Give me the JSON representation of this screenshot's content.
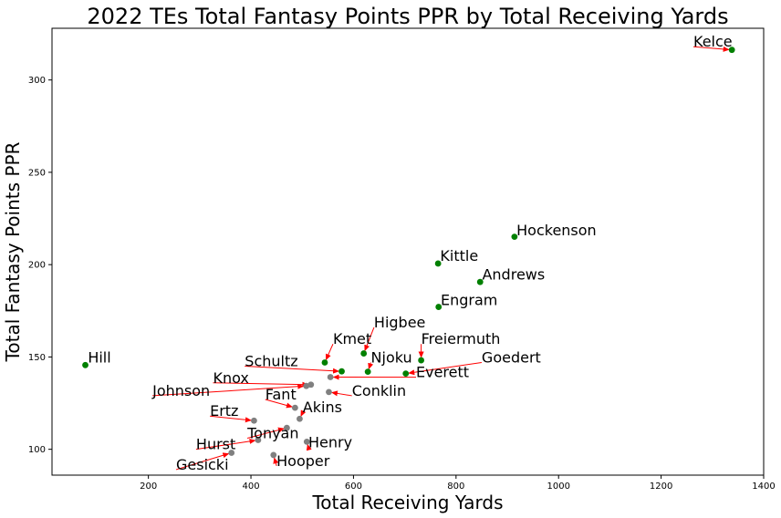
{
  "chart_data": {
    "type": "scatter",
    "title": "2022 TEs Total Fantasy Points PPR by Total Receiving Yards",
    "xlabel": "Total Receiving Yards",
    "ylabel": "Total Fantasy Points PPR",
    "xlim": [
      12,
      1400
    ],
    "ylim": [
      86,
      328
    ],
    "xticks": [
      200,
      400,
      600,
      800,
      1000,
      1200,
      1400
    ],
    "yticks": [
      100,
      150,
      200,
      250,
      300
    ],
    "grid": false,
    "colors": {
      "green": "#008000",
      "gray": "#808080",
      "arrow": "#ff0000"
    },
    "points": [
      {
        "label": "Kelce",
        "x": 1338,
        "y": 316.3,
        "color": "green",
        "tx": 1263,
        "ty": 318
      },
      {
        "label": "Hockenson",
        "x": 914,
        "y": 215.1,
        "color": "green",
        "tx": 918,
        "ty": 216
      },
      {
        "label": "Kittle",
        "x": 765,
        "y": 200.6,
        "color": "green",
        "tx": 769,
        "ty": 202
      },
      {
        "label": "Andrews",
        "x": 847,
        "y": 190.6,
        "color": "green",
        "tx": 851,
        "ty": 192
      },
      {
        "label": "Engram",
        "x": 766,
        "y": 177.1,
        "color": "green",
        "tx": 770,
        "ty": 178
      },
      {
        "label": "Higbee",
        "x": 620,
        "y": 151.9,
        "color": "green",
        "tx": 640,
        "ty": 166
      },
      {
        "label": "Kmet",
        "x": 544,
        "y": 147.0,
        "color": "green",
        "tx": 560,
        "ty": 157
      },
      {
        "label": "Freiermuth",
        "x": 732,
        "y": 148.2,
        "color": "green",
        "tx": 732,
        "ty": 157
      },
      {
        "label": "Goedert",
        "x": 702,
        "y": 141.0,
        "color": "green",
        "tx": 850,
        "ty": 147
      },
      {
        "label": "Njoku",
        "x": 628,
        "y": 142.0,
        "color": "green",
        "tx": 634,
        "ty": 147
      },
      {
        "label": "Schultz",
        "x": 577,
        "y": 142.2,
        "color": "green",
        "tx": 388,
        "ty": 145
      },
      {
        "label": "Everett",
        "x": 555,
        "y": 139.1,
        "color": "gray",
        "tx": 722,
        "ty": 139
      },
      {
        "label": "Hill",
        "x": 77,
        "y": 145.6,
        "color": "green",
        "tx": 82,
        "ty": 147
      },
      {
        "label": "Knox",
        "x": 517,
        "y": 135.0,
        "color": "gray",
        "tx": 326,
        "ty": 136
      },
      {
        "label": "Johnson",
        "x": 508,
        "y": 134.3,
        "color": "gray",
        "tx": 208,
        "ty": 129
      },
      {
        "label": "Conklin",
        "x": 552,
        "y": 131.0,
        "color": "gray",
        "tx": 597,
        "ty": 129
      },
      {
        "label": "Fant",
        "x": 486,
        "y": 122.5,
        "color": "gray",
        "tx": 428,
        "ty": 127
      },
      {
        "label": "Akins",
        "x": 495,
        "y": 116.5,
        "color": "gray",
        "tx": 501,
        "ty": 120
      },
      {
        "label": "Ertz",
        "x": 406,
        "y": 115.5,
        "color": "gray",
        "tx": 320,
        "ty": 118
      },
      {
        "label": "Tonyan",
        "x": 470,
        "y": 111.6,
        "color": "gray",
        "tx": 393,
        "ty": 106
      },
      {
        "label": "Hurst",
        "x": 414,
        "y": 105.0,
        "color": "gray",
        "tx": 293,
        "ty": 100
      },
      {
        "label": "Henry",
        "x": 509,
        "y": 104.1,
        "color": "gray",
        "tx": 512,
        "ty": 101
      },
      {
        "label": "Gesicki",
        "x": 362,
        "y": 98.1,
        "color": "gray",
        "tx": 254,
        "ty": 89
      },
      {
        "label": "Hooper",
        "x": 444,
        "y": 96.9,
        "color": "gray",
        "tx": 450,
        "ty": 91
      }
    ]
  }
}
